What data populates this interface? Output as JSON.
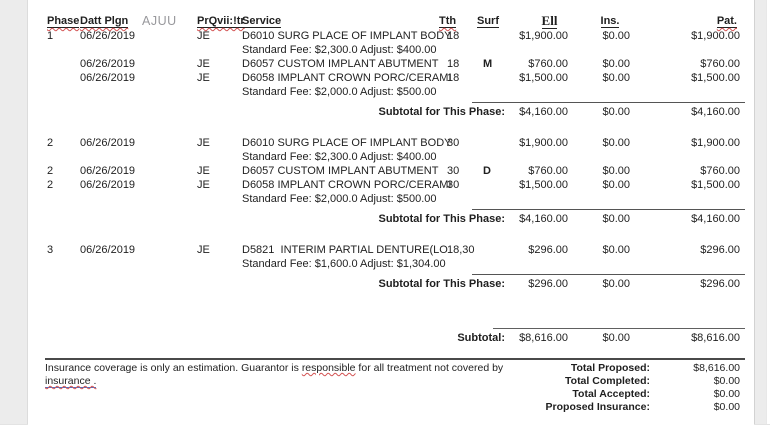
{
  "colors": {
    "spellcheck": "#d25050",
    "link_underline": "#4a74c9"
  },
  "table": {
    "header": {
      "phase": "Phase",
      "date": "Datt Plgn",
      "extra": "AJUU",
      "provider": "PrQvii:!tr",
      "service": "Service",
      "tth": "Tth",
      "surf": "Surf",
      "fee": "Ell",
      "ins": "Ins.",
      "pat": "Pat."
    },
    "phases": [
      {
        "rows": [
          {
            "phase": "1",
            "date": "06/26/2019",
            "provider": "JE",
            "service": "D6010 SURG PLACE OF IMPLANT BODY",
            "tth": "18",
            "surf": "",
            "fee": "$1,900.00",
            "ins": "$0.00",
            "pat": "$1,900.00",
            "note": "Standard Fee: $2,300.0 Adjust: $400.00"
          },
          {
            "phase": "",
            "date": "06/26/2019",
            "provider": "JE",
            "service": "D6057 CUSTOM IMPLANT ABUTMENT",
            "tth": "18",
            "surf": "M",
            "fee": "$760.00",
            "ins": "$0.00",
            "pat": "$760.00",
            "note": ""
          },
          {
            "phase": "",
            "date": "06/26/2019",
            "provider": "JE",
            "service": "D6058 IMPLANT CROWN PORC/CERAMI",
            "tth": "18",
            "surf": "",
            "fee": "$1,500.00",
            "ins": "$0.00",
            "pat": "$1,500.00",
            "note": "Standard Fee: $2,000.0 Adjust: $500.00"
          }
        ],
        "subtotal_label": "Subtotal for This Phase:",
        "subtotal_fee": "$4,160.00",
        "subtotal_ins": "$0.00",
        "subtotal_pat": "$4,160.00"
      },
      {
        "rows": [
          {
            "phase": "2",
            "date": "06/26/2019",
            "provider": "JE",
            "service": "D6010 SURG PLACE OF IMPLANT BODY",
            "tth": "30",
            "surf": "",
            "fee": "$1,900.00",
            "ins": "$0.00",
            "pat": "$1,900.00",
            "note": "Standard Fee: $2,300.0 Adjust: $400.00"
          },
          {
            "phase": "2",
            "date": "06/26/2019",
            "provider": "JE",
            "service": "D6057 CUSTOM IMPLANT ABUTMENT",
            "tth": "30",
            "surf": "D",
            "fee": "$760.00",
            "ins": "$0.00",
            "pat": "$760.00",
            "note": ""
          },
          {
            "phase": "2",
            "date": "06/26/2019",
            "provider": "JE",
            "service": "D6058 IMPLANT CROWN PORC/CERAMI",
            "tth": "30",
            "surf": "",
            "fee": "$1,500.00",
            "ins": "$0.00",
            "pat": "$1,500.00",
            "note": "Standard Fee: $2,000.0 Adjust: $500.00"
          }
        ],
        "subtotal_label": "Subtotal for This Phase:",
        "subtotal_fee": "$4,160.00",
        "subtotal_ins": "$0.00",
        "subtotal_pat": "$4,160.00"
      },
      {
        "rows": [
          {
            "phase": "3",
            "date": "06/26/2019",
            "provider": "JE",
            "service": "D5821  INTERIM PARTIAL DENTURE(LO",
            "tth": "18,30",
            "surf": "",
            "fee": "$296.00",
            "ins": "$0.00",
            "pat": "$296.00",
            "note": "Standard Fee: $1,600.0 Adjust: $1,304.00"
          }
        ],
        "subtotal_label": "Subtotal for This Phase:",
        "subtotal_fee": "$296.00",
        "subtotal_ins": "$0.00",
        "subtotal_pat": "$296.00"
      }
    ],
    "grand": {
      "label": "Subtotal:",
      "fee": "$8,616.00",
      "ins": "$0.00",
      "pat": "$8,616.00"
    }
  },
  "footer": {
    "disclaimer_part1": "Insurance coverage is only an estimation. Guarantor is ",
    "disclaimer_flagged": "responsible",
    "disclaimer_part2": " for all treatment not covered by",
    "disclaimer_line2": "insurance .",
    "totals": [
      {
        "label": "Total Proposed:",
        "value": "$8,616.00"
      },
      {
        "label": "Total Completed:",
        "value": "$0.00"
      },
      {
        "label": "Total Accepted:",
        "value": "$0.00"
      },
      {
        "label": "Proposed Insurance:",
        "value": "$0.00"
      }
    ]
  }
}
